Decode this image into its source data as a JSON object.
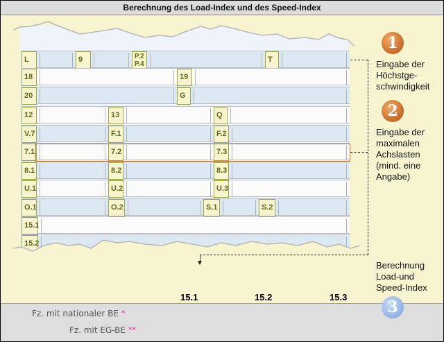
{
  "title": "Berechnung des Load-Index und des Speed-Index",
  "rows": [
    {
      "cells": [
        {
          "label": "L"
        },
        {
          "label": "9"
        },
        {
          "label": "P.2\nP.4"
        },
        {
          "label": "T"
        }
      ]
    },
    {
      "cells": [
        {
          "label": "18"
        },
        {
          "label": "19"
        }
      ]
    },
    {
      "cells": [
        {
          "label": "20"
        },
        {
          "label": "G"
        }
      ]
    },
    {
      "cells": [
        {
          "label": "12"
        },
        {
          "label": "13"
        },
        {
          "label": "Q"
        }
      ]
    },
    {
      "cells": [
        {
          "label": "V.7"
        },
        {
          "label": "F.1"
        },
        {
          "label": "F.2"
        }
      ]
    },
    {
      "cells": [
        {
          "label": "7.1"
        },
        {
          "label": "7.2"
        },
        {
          "label": "7.3"
        }
      ]
    },
    {
      "cells": [
        {
          "label": "8.1"
        },
        {
          "label": "8.2"
        },
        {
          "label": "8.3"
        }
      ]
    },
    {
      "cells": [
        {
          "label": "U.1"
        },
        {
          "label": "U.2"
        },
        {
          "label": "U.3"
        }
      ]
    },
    {
      "cells": [
        {
          "label": "O.1"
        },
        {
          "label": "O.2"
        },
        {
          "label": "S.1"
        },
        {
          "label": "S.2"
        }
      ]
    },
    {
      "cells": [
        {
          "label": "15.1"
        }
      ]
    },
    {
      "cells": [
        {
          "label": "15.2"
        }
      ]
    }
  ],
  "steps": {
    "one": {
      "number": "1",
      "text": "Eingabe der\nHöchstge-\nschwindigkeit"
    },
    "two": {
      "number": "2",
      "text": "Eingabe der\nmaximalen\nAchslasten\n(mind. eine\nAngabe)"
    },
    "three": {
      "number": "3",
      "text": "Berechnung\nLoad-und\nSpeed-Index"
    }
  },
  "result_columns": [
    "15.1",
    "15.2",
    "15.3"
  ],
  "footer": {
    "national": {
      "label": "Fz. mit nationaler BE",
      "mark": "*"
    },
    "eg": {
      "label": "Fz. mit EG-BE",
      "mark": "**"
    }
  },
  "colors": {
    "accent_orange": "#c86a22",
    "accent_blue": "#8fb1e4",
    "label_green": "#606a16",
    "mark_pink": "#e0208a"
  }
}
